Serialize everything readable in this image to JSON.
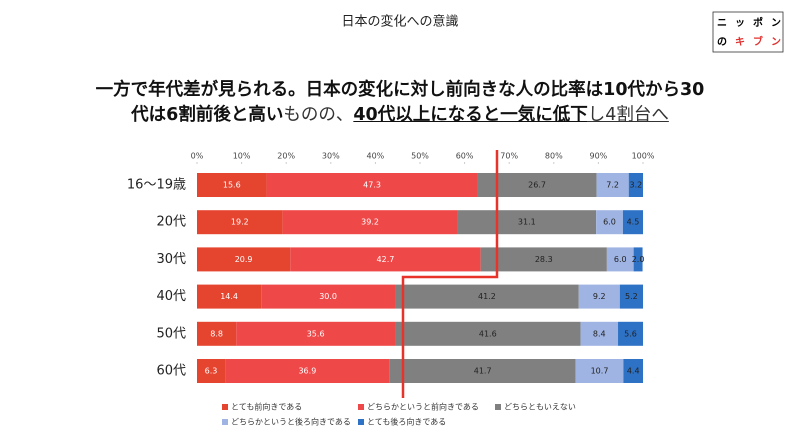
{
  "slide_title": "日本の変化への意識",
  "logo": {
    "line1": [
      "ニ",
      "ッ",
      "ポ",
      "ン"
    ],
    "line2": [
      "の",
      "キ",
      "ブ",
      "ン"
    ]
  },
  "headline": {
    "line1": "一方で年代差が見られる。日本の変化に対し前向きな人の比率は10代から30",
    "line2": [
      "代は6割前後と高い",
      "ものの、",
      "40代以上になると一気に低下",
      "し4割台へ"
    ]
  },
  "chart_data": {
    "type": "bar",
    "orientation": "horizontal",
    "stacked": true,
    "categories": [
      "16～19歳",
      "20代",
      "30代",
      "40代",
      "50代",
      "60代"
    ],
    "series": [
      {
        "name": "とても前向きである",
        "color": "#e5442f",
        "values": [
          15.6,
          19.2,
          20.9,
          14.4,
          8.8,
          6.3
        ],
        "value_labels": [
          "15.6",
          "19.2",
          "20.9",
          "14.4",
          "8.8",
          "6.3"
        ]
      },
      {
        "name": "どちらかというと前向きである",
        "color": "#ef4848",
        "values": [
          47.3,
          39.2,
          42.7,
          30.0,
          35.6,
          36.9
        ],
        "value_labels": [
          "47.3",
          "39.2",
          "42.7",
          "30.0",
          "35.6",
          "36.9"
        ]
      },
      {
        "name": "どちらともいえない",
        "color": "#808080",
        "values": [
          26.7,
          31.1,
          28.3,
          41.2,
          41.6,
          41.7
        ],
        "value_labels": [
          "26.7",
          "31.1",
          "28.3",
          "41.2",
          "41.6",
          "41.7"
        ]
      },
      {
        "name": "どちらかというと後ろ向きである",
        "color": "#9fb4e2",
        "values": [
          7.2,
          6.0,
          6.0,
          9.2,
          8.4,
          10.7
        ],
        "value_labels": [
          "7.2",
          "6.0",
          "6.0",
          "9.2",
          "8.4",
          "10.7"
        ]
      },
      {
        "name": "とても後ろ向きである",
        "color": "#2e72c6",
        "values": [
          3.2,
          4.5,
          2.0,
          5.2,
          5.6,
          4.4
        ],
        "value_labels": [
          "3.2",
          "4.5",
          "2.0",
          "5.2",
          "5.6",
          "4.4"
        ]
      }
    ],
    "xlim": [
      0,
      100
    ],
    "xticks": [
      {
        "value": 0,
        "label": "0%"
      },
      {
        "value": 10,
        "label": "10%"
      },
      {
        "value": 20,
        "label": "20%"
      },
      {
        "value": 30,
        "label": "30%"
      },
      {
        "value": 40,
        "label": "40%"
      },
      {
        "value": 50,
        "label": "50%"
      },
      {
        "value": 60,
        "label": "60%"
      },
      {
        "value": 70,
        "label": "70%"
      },
      {
        "value": 80,
        "label": "80%"
      },
      {
        "value": 90,
        "label": "90%"
      },
      {
        "value": 100,
        "label": "100%"
      }
    ]
  }
}
